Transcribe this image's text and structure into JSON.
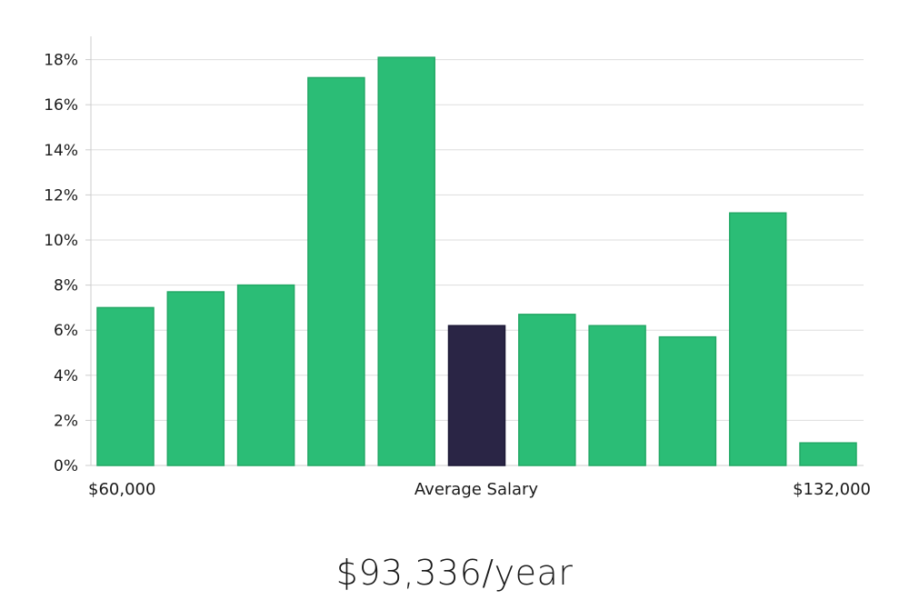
{
  "chart_data": {
    "type": "bar",
    "values": [
      7.0,
      7.7,
      8.0,
      17.2,
      18.1,
      6.2,
      6.7,
      6.2,
      5.7,
      11.2,
      1.0
    ],
    "highlight_index": 5,
    "ylim": [
      0,
      19
    ],
    "yticks": [
      0,
      2,
      4,
      6,
      8,
      10,
      12,
      14,
      16,
      18
    ],
    "ytick_suffix": "%",
    "grid": true,
    "x_labels": {
      "left": "$60,000",
      "center": "Average Salary",
      "right": "$132,000"
    },
    "colors": {
      "bar": "#2bbd76",
      "bar_border": "#22a865",
      "highlight": "#2a2545",
      "grid": "#dddddd",
      "axis": "#cccccc"
    }
  },
  "salary_display": "$93,336/year"
}
